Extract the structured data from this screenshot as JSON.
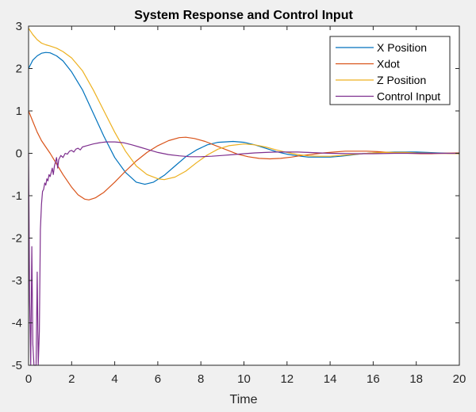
{
  "chart_data": {
    "type": "line",
    "title": "System Response and Control Input",
    "xlabel": "Time",
    "ylabel": "",
    "xlim": [
      0,
      20
    ],
    "ylim": [
      -5,
      3
    ],
    "x_ticks": [
      "0",
      "2",
      "4",
      "6",
      "8",
      "10",
      "12",
      "14",
      "16",
      "18",
      "20"
    ],
    "y_ticks": [
      "3",
      "2",
      "1",
      "0",
      "-1",
      "-2",
      "-3",
      "-4",
      "-5"
    ],
    "grid": false,
    "legend_position": "top-right",
    "series": [
      {
        "name": "X Position",
        "color": "#0072bd",
        "points": [
          [
            0,
            2.0
          ],
          [
            0.2,
            2.2
          ],
          [
            0.4,
            2.3
          ],
          [
            0.6,
            2.36
          ],
          [
            0.8,
            2.38
          ],
          [
            1.0,
            2.37
          ],
          [
            1.3,
            2.3
          ],
          [
            1.6,
            2.18
          ],
          [
            2.0,
            1.92
          ],
          [
            2.5,
            1.5
          ],
          [
            3.0,
            0.95
          ],
          [
            3.5,
            0.4
          ],
          [
            4.0,
            -0.1
          ],
          [
            4.5,
            -0.45
          ],
          [
            5.0,
            -0.68
          ],
          [
            5.4,
            -0.73
          ],
          [
            5.8,
            -0.68
          ],
          [
            6.3,
            -0.52
          ],
          [
            6.8,
            -0.3
          ],
          [
            7.3,
            -0.08
          ],
          [
            7.8,
            0.08
          ],
          [
            8.3,
            0.2
          ],
          [
            8.8,
            0.26
          ],
          [
            9.5,
            0.28
          ],
          [
            10.0,
            0.26
          ],
          [
            10.5,
            0.2
          ],
          [
            11.0,
            0.12
          ],
          [
            11.5,
            0.04
          ],
          [
            12.0,
            -0.02
          ],
          [
            12.5,
            -0.06
          ],
          [
            13.0,
            -0.09
          ],
          [
            13.5,
            -0.09
          ],
          [
            14.0,
            -0.09
          ],
          [
            14.5,
            -0.07
          ],
          [
            15.0,
            -0.04
          ],
          [
            15.5,
            -0.01
          ],
          [
            16.0,
            0.01
          ],
          [
            16.5,
            0.02
          ],
          [
            17.0,
            0.03
          ],
          [
            17.5,
            0.03
          ],
          [
            18.0,
            0.03
          ],
          [
            18.5,
            0.02
          ],
          [
            19.0,
            0.01
          ],
          [
            19.5,
            0.0
          ],
          [
            20.0,
            -0.01
          ]
        ]
      },
      {
        "name": "Xdot",
        "color": "#d95319",
        "points": [
          [
            0,
            1.0
          ],
          [
            0.2,
            0.75
          ],
          [
            0.4,
            0.5
          ],
          [
            0.6,
            0.3
          ],
          [
            0.8,
            0.15
          ],
          [
            1.0,
            0.0
          ],
          [
            1.3,
            -0.25
          ],
          [
            1.6,
            -0.5
          ],
          [
            2.0,
            -0.8
          ],
          [
            2.3,
            -0.98
          ],
          [
            2.6,
            -1.08
          ],
          [
            2.8,
            -1.1
          ],
          [
            3.1,
            -1.05
          ],
          [
            3.5,
            -0.92
          ],
          [
            4.0,
            -0.68
          ],
          [
            4.5,
            -0.42
          ],
          [
            5.0,
            -0.18
          ],
          [
            5.5,
            0.02
          ],
          [
            6.0,
            0.18
          ],
          [
            6.5,
            0.3
          ],
          [
            7.0,
            0.37
          ],
          [
            7.3,
            0.38
          ],
          [
            7.7,
            0.35
          ],
          [
            8.2,
            0.28
          ],
          [
            8.7,
            0.18
          ],
          [
            9.2,
            0.08
          ],
          [
            9.7,
            -0.02
          ],
          [
            10.2,
            -0.08
          ],
          [
            10.7,
            -0.12
          ],
          [
            11.2,
            -0.13
          ],
          [
            11.7,
            -0.12
          ],
          [
            12.2,
            -0.09
          ],
          [
            12.7,
            -0.05
          ],
          [
            13.2,
            -0.02
          ],
          [
            13.7,
            0.01
          ],
          [
            14.2,
            0.03
          ],
          [
            14.7,
            0.05
          ],
          [
            15.2,
            0.05
          ],
          [
            15.7,
            0.05
          ],
          [
            16.2,
            0.04
          ],
          [
            16.7,
            0.02
          ],
          [
            17.2,
            0.01
          ],
          [
            17.7,
            0.0
          ],
          [
            18.2,
            -0.01
          ],
          [
            18.7,
            -0.01
          ],
          [
            19.2,
            0.0
          ],
          [
            20.0,
            0.01
          ]
        ]
      },
      {
        "name": "Z Position",
        "color": "#edb120",
        "points": [
          [
            0,
            2.95
          ],
          [
            0.2,
            2.8
          ],
          [
            0.4,
            2.68
          ],
          [
            0.6,
            2.6
          ],
          [
            0.8,
            2.56
          ],
          [
            1.0,
            2.53
          ],
          [
            1.3,
            2.48
          ],
          [
            1.6,
            2.4
          ],
          [
            2.0,
            2.25
          ],
          [
            2.5,
            1.95
          ],
          [
            3.0,
            1.5
          ],
          [
            3.5,
            1.0
          ],
          [
            4.0,
            0.5
          ],
          [
            4.5,
            0.05
          ],
          [
            5.0,
            -0.3
          ],
          [
            5.5,
            -0.5
          ],
          [
            6.0,
            -0.6
          ],
          [
            6.3,
            -0.62
          ],
          [
            6.8,
            -0.56
          ],
          [
            7.3,
            -0.42
          ],
          [
            7.8,
            -0.22
          ],
          [
            8.3,
            -0.04
          ],
          [
            8.8,
            0.1
          ],
          [
            9.3,
            0.18
          ],
          [
            10.0,
            0.22
          ],
          [
            10.5,
            0.2
          ],
          [
            11.0,
            0.15
          ],
          [
            11.5,
            0.08
          ],
          [
            12.0,
            0.02
          ],
          [
            12.5,
            -0.03
          ],
          [
            13.0,
            -0.06
          ],
          [
            13.5,
            -0.07
          ],
          [
            14.0,
            -0.07
          ],
          [
            14.5,
            -0.05
          ],
          [
            15.0,
            -0.03
          ],
          [
            15.5,
            -0.01
          ],
          [
            16.0,
            0.01
          ],
          [
            16.5,
            0.02
          ],
          [
            17.0,
            0.02
          ],
          [
            17.5,
            0.02
          ],
          [
            18.0,
            0.01
          ],
          [
            19.0,
            0.0
          ],
          [
            20.0,
            -0.01
          ]
        ]
      },
      {
        "name": "Control Input",
        "color": "#7e2f8e",
        "points": [
          [
            0,
            0.0
          ],
          [
            0.05,
            -3.5
          ],
          [
            0.1,
            -5.0
          ],
          [
            0.15,
            -2.2
          ],
          [
            0.2,
            -4.5
          ],
          [
            0.25,
            -5.0
          ],
          [
            0.35,
            -5.0
          ],
          [
            0.4,
            -2.8
          ],
          [
            0.45,
            -5.0
          ],
          [
            0.5,
            -4.2
          ],
          [
            0.55,
            -1.8
          ],
          [
            0.6,
            -1.2
          ],
          [
            0.65,
            -0.9
          ],
          [
            0.7,
            -0.85
          ],
          [
            0.75,
            -0.7
          ],
          [
            0.8,
            -0.75
          ],
          [
            0.85,
            -0.6
          ],
          [
            0.9,
            -0.65
          ],
          [
            0.95,
            -0.5
          ],
          [
            1.0,
            -0.55
          ],
          [
            1.1,
            -0.35
          ],
          [
            1.15,
            -0.5
          ],
          [
            1.2,
            -0.3
          ],
          [
            1.3,
            -0.1
          ],
          [
            1.35,
            -0.35
          ],
          [
            1.4,
            -0.15
          ],
          [
            1.5,
            -0.05
          ],
          [
            1.6,
            -0.1
          ],
          [
            1.7,
            0.0
          ],
          [
            1.8,
            -0.02
          ],
          [
            1.9,
            0.05
          ],
          [
            2.0,
            0.07
          ],
          [
            2.1,
            0.03
          ],
          [
            2.2,
            0.1
          ],
          [
            2.3,
            0.12
          ],
          [
            2.4,
            0.08
          ],
          [
            2.5,
            0.15
          ],
          [
            2.7,
            0.18
          ],
          [
            3.0,
            0.22
          ],
          [
            3.3,
            0.25
          ],
          [
            3.6,
            0.27
          ],
          [
            4.0,
            0.27
          ],
          [
            4.4,
            0.25
          ],
          [
            4.8,
            0.2
          ],
          [
            5.2,
            0.14
          ],
          [
            5.6,
            0.08
          ],
          [
            6.0,
            0.02
          ],
          [
            6.5,
            -0.03
          ],
          [
            7.0,
            -0.06
          ],
          [
            7.5,
            -0.08
          ],
          [
            8.0,
            -0.08
          ],
          [
            8.5,
            -0.07
          ],
          [
            9.0,
            -0.05
          ],
          [
            9.5,
            -0.03
          ],
          [
            10.0,
            -0.01
          ],
          [
            10.5,
            0.01
          ],
          [
            11.0,
            0.02
          ],
          [
            11.5,
            0.03
          ],
          [
            12.0,
            0.03
          ],
          [
            12.5,
            0.03
          ],
          [
            13.0,
            0.02
          ],
          [
            13.5,
            0.01
          ],
          [
            14.0,
            0.0
          ],
          [
            15.0,
            -0.01
          ],
          [
            16.0,
            -0.01
          ],
          [
            17.0,
            0.0
          ],
          [
            18.0,
            0.0
          ],
          [
            19.0,
            0.0
          ],
          [
            20.0,
            0.0
          ]
        ]
      }
    ]
  }
}
